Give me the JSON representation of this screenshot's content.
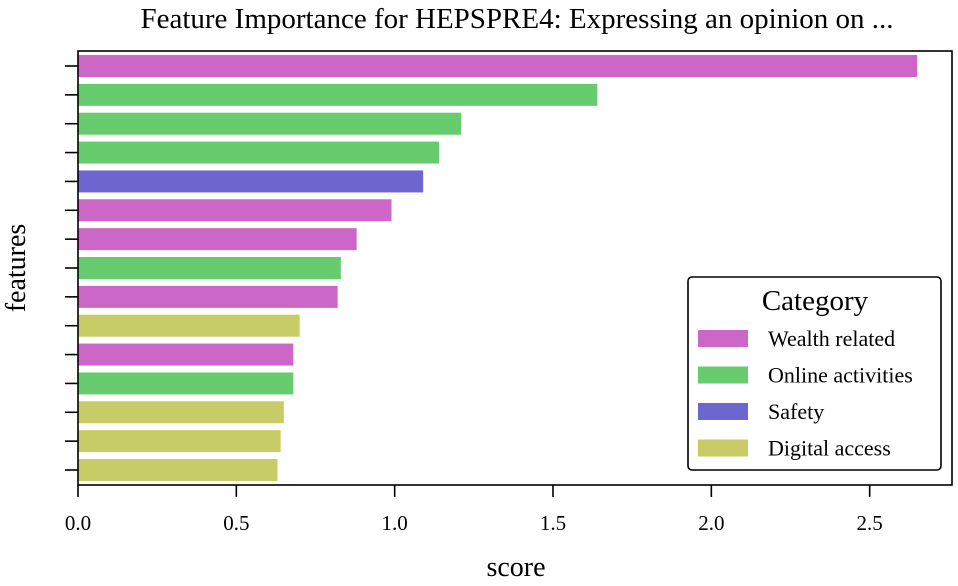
{
  "chart_data": {
    "type": "bar",
    "orientation": "horizontal",
    "title": "Feature Importance for HEPSPRE4: Expressing an opinion on ...",
    "xlabel": "score",
    "ylabel": "features",
    "xlim": [
      0,
      2.76
    ],
    "xticks": [
      "0.0",
      "0.5",
      "1.0",
      "1.5",
      "2.0",
      "2.5"
    ],
    "grid": false,
    "legend": {
      "title": "Category",
      "placement": "lower-right",
      "entries": [
        {
          "name": "Wealth related",
          "color": "#cc66c7"
        },
        {
          "name": "Online activities",
          "color": "#66cc6e"
        },
        {
          "name": "Safety",
          "color": "#6e66cf"
        },
        {
          "name": "Digital access",
          "color": "#c7cc66"
        }
      ]
    },
    "bars": [
      {
        "value": 2.65,
        "category": "Wealth related"
      },
      {
        "value": 1.64,
        "category": "Online activities"
      },
      {
        "value": 1.21,
        "category": "Online activities"
      },
      {
        "value": 1.14,
        "category": "Online activities"
      },
      {
        "value": 1.09,
        "category": "Safety"
      },
      {
        "value": 0.99,
        "category": "Wealth related"
      },
      {
        "value": 0.88,
        "category": "Wealth related"
      },
      {
        "value": 0.83,
        "category": "Online activities"
      },
      {
        "value": 0.82,
        "category": "Wealth related"
      },
      {
        "value": 0.7,
        "category": "Digital access"
      },
      {
        "value": 0.68,
        "category": "Wealth related"
      },
      {
        "value": 0.68,
        "category": "Online activities"
      },
      {
        "value": 0.65,
        "category": "Digital access"
      },
      {
        "value": 0.64,
        "category": "Digital access"
      },
      {
        "value": 0.63,
        "category": "Digital access"
      }
    ]
  }
}
